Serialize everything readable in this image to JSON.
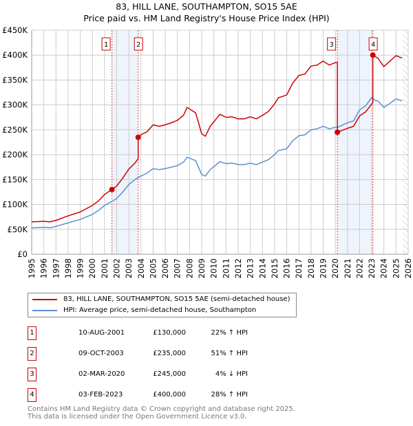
{
  "chart_data": {
    "type": "line",
    "title": "83, HILL LANE, SOUTHAMPTON, SO15 5AE",
    "subtitle": "Price paid vs. HM Land Registry's House Price Index (HPI)",
    "xlim": [
      1995,
      2026
    ],
    "ylim": [
      0,
      450000
    ],
    "grid": true,
    "x_ticks": [
      "1995",
      "1996",
      "1997",
      "1998",
      "1999",
      "2000",
      "2001",
      "2002",
      "2003",
      "2004",
      "2005",
      "2006",
      "2007",
      "2008",
      "2009",
      "2010",
      "2011",
      "2012",
      "2013",
      "2014",
      "2015",
      "2016",
      "2017",
      "2018",
      "2019",
      "2020",
      "2021",
      "2022",
      "2023",
      "2024",
      "2025",
      "2026"
    ],
    "y_ticks": [
      {
        "v": 0,
        "label": "£0"
      },
      {
        "v": 50000,
        "label": "£50K"
      },
      {
        "v": 100000,
        "label": "£100K"
      },
      {
        "v": 150000,
        "label": "£150K"
      },
      {
        "v": 200000,
        "label": "£200K"
      },
      {
        "v": 250000,
        "label": "£250K"
      },
      {
        "v": 300000,
        "label": "£300K"
      },
      {
        "v": 350000,
        "label": "£350K"
      },
      {
        "v": 400000,
        "label": "£400K"
      },
      {
        "v": 450000,
        "label": "£450K"
      }
    ],
    "series": [
      {
        "name": "83, HILL LANE, SOUTHAMPTON, SO15 5AE (semi-detached house)",
        "color": "#cc0000",
        "x": [
          1995,
          1996,
          1996.5,
          1997,
          1998,
          1999,
          2000,
          2000.5,
          2001,
          2001.6,
          2002,
          2002.5,
          2003,
          2003.5,
          2003.77,
          2003.77,
          2004,
          2004.5,
          2005,
          2005.5,
          2006,
          2006.5,
          2007,
          2007.5,
          2007.8,
          2008.5,
          2009,
          2009.3,
          2009.7,
          2010.5,
          2011,
          2011.5,
          2012,
          2012.5,
          2013,
          2013.5,
          2014,
          2014.5,
          2015,
          2015.3,
          2016,
          2016.5,
          2017,
          2017.5,
          2018,
          2018.5,
          2019,
          2019.5,
          2020,
          2020.17,
          2020.17,
          2021,
          2021.5,
          2022,
          2022.5,
          2023,
          2023.09,
          2023.09,
          2023.5,
          2024,
          2024.5,
          2025,
          2025.5
        ],
        "y": [
          65000,
          66000,
          65000,
          68000,
          77000,
          85000,
          98000,
          107000,
          120000,
          130000,
          137000,
          153000,
          171000,
          183000,
          192000,
          235000,
          240000,
          246000,
          260000,
          257000,
          260000,
          264000,
          269000,
          279000,
          295000,
          284000,
          242000,
          237000,
          257000,
          281000,
          275000,
          276000,
          272000,
          272000,
          276000,
          272000,
          279000,
          287000,
          302000,
          314000,
          320000,
          344000,
          359000,
          362000,
          378000,
          380000,
          388000,
          380000,
          385000,
          385000,
          245000,
          253000,
          257000,
          278000,
          286000,
          302000,
          304000,
          400000,
          394000,
          377000,
          388000,
          399000,
          394000
        ]
      },
      {
        "name": "HPI: Average price, semi-detached house, Southampton",
        "color": "#5b8fd0",
        "x": [
          1995,
          1996,
          1996.5,
          1997,
          1998,
          1999,
          2000,
          2000.5,
          2001,
          2001.6,
          2002,
          2002.5,
          2003,
          2003.5,
          2004,
          2004.5,
          2005,
          2005.5,
          2006,
          2006.5,
          2007,
          2007.5,
          2007.8,
          2008.5,
          2009,
          2009.3,
          2009.7,
          2010.5,
          2011,
          2011.5,
          2012,
          2012.5,
          2013,
          2013.5,
          2014,
          2014.5,
          2015,
          2015.3,
          2016,
          2016.5,
          2017,
          2017.5,
          2018,
          2018.5,
          2019,
          2019.5,
          2020,
          2020.2,
          2021,
          2021.5,
          2022,
          2022.5,
          2023,
          2023.2,
          2023.5,
          2024,
          2024.5,
          2025,
          2025.5
        ],
        "y": [
          53000,
          54000,
          53000,
          56000,
          63000,
          70000,
          80000,
          88000,
          98000,
          106000,
          112000,
          125000,
          140000,
          150000,
          157000,
          163000,
          172000,
          170000,
          172000,
          175000,
          178000,
          185000,
          195000,
          188000,
          160000,
          157000,
          170000,
          186000,
          182000,
          183000,
          180000,
          180000,
          183000,
          180000,
          185000,
          190000,
          200000,
          208000,
          212000,
          228000,
          238000,
          240000,
          250000,
          252000,
          257000,
          252000,
          255000,
          255000,
          264000,
          268000,
          290000,
          298000,
          315000,
          310000,
          308000,
          295000,
          303000,
          312000,
          308000
        ]
      }
    ],
    "shaded_ranges": [
      [
        2001.61,
        2003.77
      ],
      [
        2020.17,
        2023.09
      ]
    ],
    "forecast_hatch_from": 2025.55,
    "sales": [
      {
        "n": "1",
        "x": 2001.61,
        "y": 130000,
        "date": "10-AUG-2001",
        "price": "£130,000",
        "hpi": "22% ↑ HPI"
      },
      {
        "n": "2",
        "x": 2003.77,
        "y": 235000,
        "date": "09-OCT-2003",
        "price": "£235,000",
        "hpi": "51% ↑ HPI"
      },
      {
        "n": "3",
        "x": 2020.17,
        "y": 245000,
        "date": "02-MAR-2020",
        "price": "£245,000",
        "hpi": "4% ↓ HPI"
      },
      {
        "n": "4",
        "x": 2023.09,
        "y": 400000,
        "date": "03-FEB-2023",
        "price": "£400,000",
        "hpi": "28% ↑ HPI"
      }
    ]
  },
  "footer": {
    "line1": "Contains HM Land Registry data © Crown copyright and database right 2025.",
    "line2": "This data is licensed under the Open Government Licence v3.0."
  }
}
